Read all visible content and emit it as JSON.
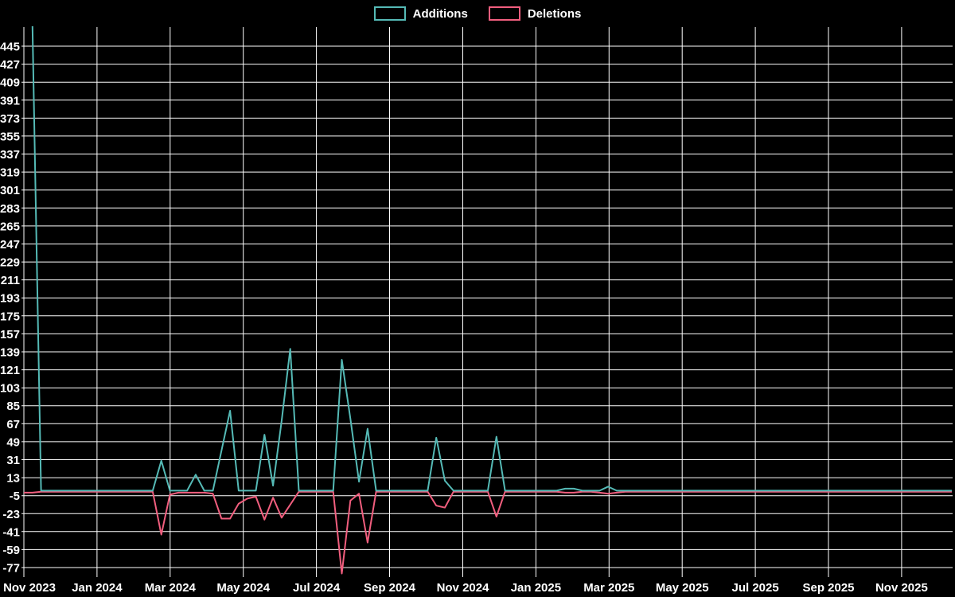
{
  "legend": {
    "items": [
      {
        "label": "Additions"
      },
      {
        "label": "Deletions"
      }
    ]
  },
  "chart_data": {
    "type": "line",
    "title": "",
    "background_color": "#000000",
    "grid": true,
    "grid_color": "#ffffff",
    "text_color": "#ffffff",
    "legend_position": "top-center",
    "x_axis": {
      "unit": "week",
      "total_weeks": 109,
      "tick_labels": [
        "Nov 2023",
        "Jan 2024",
        "Mar 2024",
        "May 2024",
        "Jul 2024",
        "Sep 2024",
        "Nov 2024",
        "Jan 2025",
        "Mar 2025",
        "May 2025",
        "Jul 2025",
        "Sep 2025",
        "Nov 2025"
      ]
    },
    "y_axis": {
      "tick_step": 18,
      "tick_labels": [
        445,
        427,
        409,
        391,
        373,
        355,
        337,
        319,
        301,
        283,
        265,
        247,
        229,
        211,
        193,
        175,
        157,
        139,
        121,
        103,
        85,
        67,
        49,
        31,
        13,
        -5,
        -23,
        -41,
        -59,
        -77
      ],
      "range_approx": [
        -85,
        467
      ]
    },
    "series": [
      {
        "name": "Additions",
        "color": "#55bab6",
        "baseline_value": 0,
        "start_week": 1,
        "week_values": {
          "1": 465,
          "16": 30,
          "20": 16,
          "23": 40,
          "24": 80,
          "28": 56,
          "29": 5,
          "30": 70,
          "31": 142,
          "37": 131,
          "38": 72,
          "39": 9,
          "40": 62,
          "48": 53,
          "49": 10,
          "55": 54,
          "63": 2,
          "64": 2,
          "68": 4
        }
      },
      {
        "name": "Deletions",
        "color": "#f15e7e",
        "baseline_value": -1,
        "start_week": 0,
        "week_values": {
          "0": -2,
          "1": -2,
          "16": -44,
          "17": -4,
          "18": -2,
          "19": -2,
          "20": -2,
          "21": -2,
          "22": -3,
          "23": -28,
          "24": -28,
          "25": -13,
          "26": -8,
          "27": -6,
          "28": -29,
          "29": -7,
          "30": -27,
          "31": -14,
          "37": -83,
          "38": -10,
          "39": -3,
          "40": -52,
          "48": -15,
          "49": -17,
          "55": -26,
          "63": -2,
          "64": -2,
          "67": -2,
          "68": -3,
          "69": -2
        }
      }
    ]
  }
}
